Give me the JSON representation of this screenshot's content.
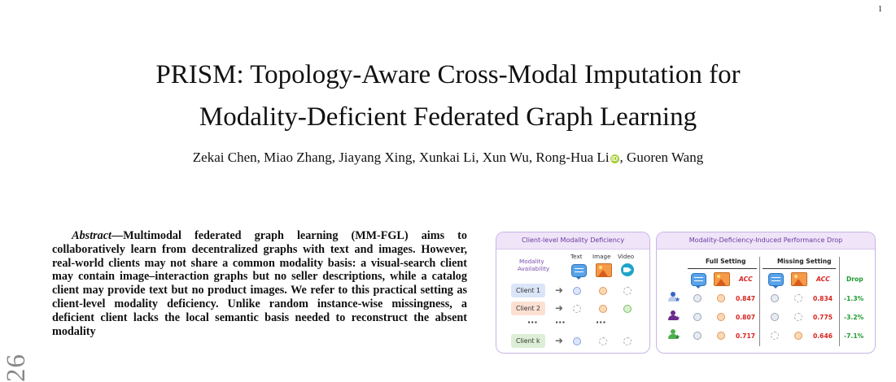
{
  "page_number": "1",
  "title_line1": "PRISM: Topology-Aware Cross-Modal Imputation for",
  "title_line2": "Modality-Deficient Federated Graph Learning",
  "authors_before": "Zekai Chen, Miao Zhang, Jiayang Xing, Xunkai Li, Xun Wu, Rong-Hua Li",
  "authors_after": ", Guoren Wang",
  "orcid_glyph": "iD",
  "arxiv_stamp": "26",
  "abstract_lead": "Abstract",
  "abstract_body": "—Multimodal federated graph learning (MM-FGL) aims to collaboratively learn from decentralized graphs with text and images. However, real-world clients may not share a common modality basis: a visual-search client may contain image–interaction graphs but no seller descriptions, while a catalog client may provide text but no product images. We refer to this practical setting as client-level modality deficiency. Unlike random instance-wise missingness, a deficient client lacks the local semantic basis needed to reconstruct the absent modality",
  "figure": {
    "left_panel": {
      "title": "Client-level Modality Deficiency",
      "availability_label_1": "Modality",
      "availability_label_2": "Availability",
      "col_text": "Text",
      "col_image": "Image",
      "col_video": "Video",
      "clients": [
        "Client 1",
        "Client 2",
        "Client k"
      ],
      "ellipsis": "···",
      "client_colors": [
        "#dbe5f8",
        "#fbe0d2",
        "#dcefd6"
      ]
    },
    "right_panel": {
      "title": "Modality-Deficiency-Induced Performance Drop",
      "full_setting": "Full Setting",
      "missing_setting": "Missing Setting",
      "acc_label": "ACC",
      "drop_label": "Drop",
      "rows": [
        {
          "full_acc": "0.847",
          "missing_acc": "0.834",
          "drop": "-1.3%"
        },
        {
          "full_acc": "0.807",
          "missing_acc": "0.775",
          "drop": "-3.2%"
        },
        {
          "full_acc": "0.717",
          "missing_acc": "0.646",
          "drop": "-7.1%"
        }
      ],
      "user_colors": [
        "#3566c8",
        "#6b2a8c",
        "#4caf50"
      ]
    }
  }
}
